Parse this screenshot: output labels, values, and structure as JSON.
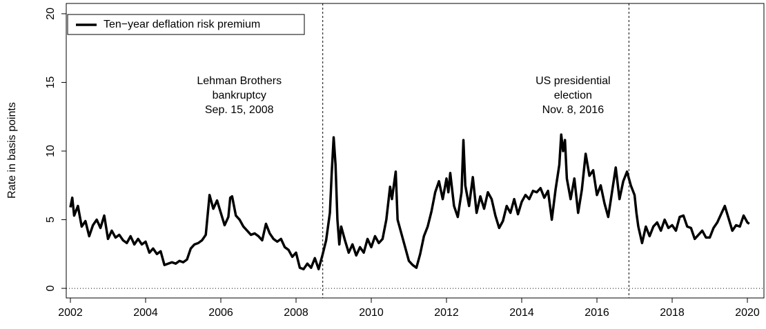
{
  "chart_data": {
    "type": "line",
    "ylabel": "Rate in basis points",
    "xlim": [
      2001.89,
      2020.44
    ],
    "ylim": [
      -0.7,
      20.75
    ],
    "xticks": [
      2002,
      2004,
      2006,
      2008,
      2010,
      2012,
      2014,
      2016,
      2018,
      2020
    ],
    "yticks": [
      0,
      5,
      10,
      15,
      20
    ],
    "hline": 0,
    "legend": "top-left",
    "annotations": [
      {
        "x": 2008.71,
        "lines": [
          "Lehman Brothers",
          "bankruptcy",
          "Sep. 15, 2008"
        ]
      },
      {
        "x": 2016.85,
        "lines": [
          "US presidential",
          "election",
          "Nov. 8, 2016"
        ]
      }
    ],
    "x": [
      2002.0,
      2002.05,
      2002.1,
      2002.2,
      2002.3,
      2002.4,
      2002.5,
      2002.6,
      2002.7,
      2002.8,
      2002.9,
      2003.0,
      2003.1,
      2003.2,
      2003.3,
      2003.4,
      2003.5,
      2003.6,
      2003.7,
      2003.8,
      2003.9,
      2004.0,
      2004.1,
      2004.2,
      2004.3,
      2004.4,
      2004.5,
      2004.6,
      2004.7,
      2004.8,
      2004.9,
      2005.0,
      2005.1,
      2005.2,
      2005.3,
      2005.4,
      2005.5,
      2005.6,
      2005.7,
      2005.8,
      2005.9,
      2006.0,
      2006.1,
      2006.2,
      2006.25,
      2006.3,
      2006.4,
      2006.5,
      2006.6,
      2006.7,
      2006.8,
      2006.9,
      2007.0,
      2007.1,
      2007.2,
      2007.3,
      2007.4,
      2007.5,
      2007.6,
      2007.7,
      2007.8,
      2007.9,
      2008.0,
      2008.1,
      2008.2,
      2008.3,
      2008.4,
      2008.5,
      2008.6,
      2008.7,
      2008.8,
      2008.9,
      2008.95,
      2009.0,
      2009.05,
      2009.1,
      2009.15,
      2009.2,
      2009.3,
      2009.4,
      2009.5,
      2009.6,
      2009.7,
      2009.8,
      2009.9,
      2010.0,
      2010.1,
      2010.2,
      2010.3,
      2010.4,
      2010.5,
      2010.55,
      2010.65,
      2010.7,
      2010.8,
      2010.9,
      2011.0,
      2011.1,
      2011.2,
      2011.3,
      2011.4,
      2011.5,
      2011.6,
      2011.7,
      2011.8,
      2011.9,
      2012.0,
      2012.05,
      2012.1,
      2012.2,
      2012.3,
      2012.4,
      2012.45,
      2012.5,
      2012.6,
      2012.7,
      2012.8,
      2012.9,
      2013.0,
      2013.1,
      2013.2,
      2013.3,
      2013.4,
      2013.5,
      2013.6,
      2013.7,
      2013.8,
      2013.9,
      2014.0,
      2014.1,
      2014.2,
      2014.3,
      2014.4,
      2014.5,
      2014.6,
      2014.7,
      2014.8,
      2014.9,
      2015.0,
      2015.05,
      2015.1,
      2015.15,
      2015.2,
      2015.3,
      2015.4,
      2015.5,
      2015.6,
      2015.7,
      2015.8,
      2015.9,
      2016.0,
      2016.1,
      2016.2,
      2016.3,
      2016.4,
      2016.5,
      2016.6,
      2016.7,
      2016.8,
      2016.9,
      2017.0,
      2017.05,
      2017.1,
      2017.2,
      2017.3,
      2017.4,
      2017.5,
      2017.6,
      2017.7,
      2017.8,
      2017.9,
      2018.0,
      2018.1,
      2018.2,
      2018.3,
      2018.4,
      2018.5,
      2018.6,
      2018.7,
      2018.8,
      2018.9,
      2019.0,
      2019.1,
      2019.2,
      2019.3,
      2019.4,
      2019.5,
      2019.6,
      2019.7,
      2019.8,
      2019.9,
      2020.0,
      2020.05
    ],
    "series": [
      {
        "name": "Ten−year deflation risk premium",
        "color": "#000000",
        "values": [
          5.9,
          6.6,
          5.3,
          6.0,
          4.5,
          4.9,
          3.8,
          4.6,
          5.0,
          4.4,
          5.3,
          3.6,
          4.2,
          3.7,
          3.9,
          3.5,
          3.3,
          3.8,
          3.2,
          3.6,
          3.2,
          3.4,
          2.6,
          2.9,
          2.5,
          2.7,
          1.7,
          1.8,
          1.9,
          1.8,
          2.0,
          1.9,
          2.1,
          2.9,
          3.2,
          3.3,
          3.5,
          3.9,
          6.8,
          5.8,
          6.4,
          5.5,
          4.6,
          5.2,
          6.6,
          6.7,
          5.3,
          5.0,
          4.5,
          4.2,
          3.9,
          4.0,
          3.8,
          3.5,
          4.7,
          4.0,
          3.6,
          3.4,
          3.6,
          3.0,
          2.8,
          2.3,
          2.6,
          1.5,
          1.4,
          1.8,
          1.5,
          2.2,
          1.4,
          2.4,
          3.5,
          5.5,
          8.5,
          11.0,
          9.0,
          5.0,
          3.2,
          4.5,
          3.5,
          2.6,
          3.2,
          2.4,
          3.0,
          2.6,
          3.6,
          3.0,
          3.8,
          3.3,
          3.6,
          5.0,
          7.4,
          6.5,
          8.5,
          5.0,
          4.0,
          3.0,
          2.0,
          1.7,
          1.5,
          2.5,
          3.8,
          4.5,
          5.6,
          7.0,
          7.8,
          6.5,
          8.0,
          7.0,
          8.4,
          6.0,
          5.2,
          7.0,
          10.8,
          7.5,
          6.0,
          8.1,
          5.5,
          6.7,
          5.8,
          7.0,
          6.5,
          5.3,
          4.4,
          4.9,
          6.0,
          5.5,
          6.5,
          5.4,
          6.3,
          6.8,
          6.5,
          7.1,
          7.0,
          7.3,
          6.6,
          7.1,
          5.0,
          7.2,
          9.0,
          11.2,
          10.0,
          10.8,
          8.0,
          6.5,
          8.0,
          5.5,
          7.2,
          9.8,
          8.2,
          8.6,
          6.8,
          7.5,
          6.2,
          5.2,
          7.0,
          8.8,
          6.5,
          7.8,
          8.5,
          7.5,
          6.8,
          5.5,
          4.5,
          3.3,
          4.5,
          3.8,
          4.5,
          4.8,
          4.2,
          5.0,
          4.4,
          4.6,
          4.2,
          5.2,
          5.3,
          4.5,
          4.4,
          3.6,
          3.9,
          4.2,
          3.7,
          3.7,
          4.4,
          4.8,
          5.4,
          6.0,
          5.1,
          4.2,
          4.6,
          4.5,
          5.3,
          4.8,
          4.7
        ]
      }
    ]
  }
}
